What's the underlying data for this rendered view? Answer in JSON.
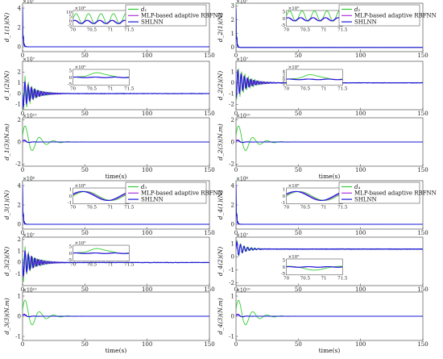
{
  "colors": {
    "d": "#33cc33",
    "mlp": "#aa33dd",
    "shlnn": "#1a1ad9",
    "axis": "#333333"
  },
  "legend_labels": [
    "MLP-based adaptive RBFNN",
    "SHLNN"
  ],
  "xlabel": "time(s)",
  "chart_data": [
    {
      "id": "p1",
      "type": "line",
      "col": 0,
      "row": 0,
      "ylabel": "d_1(1)(N)",
      "exponent": "×10⁷",
      "xlim": [
        0,
        150
      ],
      "ylim": [
        -0.5,
        4.5
      ],
      "yticks": [
        "0",
        "2",
        "4"
      ],
      "xticks": [
        "0",
        "50",
        "100",
        "150"
      ],
      "legend": {
        "symbol": "d₁"
      },
      "inset": {
        "xlim": [
          70,
          71.5
        ],
        "ylim": [
          -6,
          12
        ],
        "yticks": [
          "-5",
          "0",
          "5",
          "10"
        ],
        "xticks": [
          "70",
          "70.5",
          "71",
          "71.5"
        ],
        "exponent": "×10⁵",
        "series": {
          "d": "osc",
          "mlp": "osc-small",
          "shlnn": "osc-small"
        }
      },
      "series": [
        {
          "name": "d_1",
          "transient": "spike-up"
        }
      ]
    },
    {
      "id": "p2",
      "type": "line",
      "col": 1,
      "row": 0,
      "ylabel": "d_2(1)(N)",
      "exponent": "×10⁷",
      "xlim": [
        0,
        150
      ],
      "ylim": [
        -0.3,
        3.2
      ],
      "yticks": [
        "0",
        "1",
        "2",
        "3"
      ],
      "xticks": [
        "0",
        "50",
        "100",
        "150"
      ],
      "legend": {
        "symbol": "d₂"
      },
      "inset": {
        "xlim": [
          70,
          71.5
        ],
        "ylim": [
          -6,
          6
        ],
        "yticks": [
          "-5",
          "0",
          "5"
        ],
        "xticks": [
          "70",
          "70.5",
          "71",
          "71.5"
        ],
        "exponent": "×10⁵",
        "series": {
          "d": "osc",
          "mlp": "osc-small",
          "shlnn": "osc-small"
        }
      },
      "series": [
        {
          "name": "d_2",
          "transient": "spike-up"
        }
      ]
    },
    {
      "id": "p3",
      "type": "line",
      "col": 0,
      "row": 1,
      "ylabel": "d_1(2)(N)",
      "exponent": "×10⁷",
      "xlim": [
        0,
        150
      ],
      "ylim": [
        -1.5,
        3
      ],
      "yticks": [
        "-1",
        "0",
        "1",
        "2"
      ],
      "xticks": [
        "0",
        "50",
        "100",
        "150"
      ],
      "inset": {
        "xlim": [
          70,
          71.5
        ],
        "ylim": [
          -6,
          6
        ],
        "yticks": [
          "-5",
          "0",
          "5"
        ],
        "xticks": [
          "70",
          "70.5",
          "71",
          "71.5"
        ],
        "exponent": "×10⁵",
        "series": {
          "d": "bump",
          "mlp": "flat",
          "shlnn": "flat"
        }
      },
      "series": [
        {
          "name": "d_1",
          "transient": "burst"
        }
      ]
    },
    {
      "id": "p4",
      "type": "line",
      "col": 1,
      "row": 1,
      "ylabel": "d_2(2)(N)",
      "exponent": "×10⁷",
      "xlim": [
        0,
        150
      ],
      "ylim": [
        -2.5,
        2
      ],
      "yticks": [
        "-2",
        "-1",
        "0",
        "1"
      ],
      "xticks": [
        "0",
        "50",
        "100",
        "150"
      ],
      "inset": {
        "xlim": [
          70,
          71.5
        ],
        "ylim": [
          -3,
          5
        ],
        "yticks": [
          "-2",
          "0",
          "2",
          "4"
        ],
        "xticks": [
          "70",
          "70.5",
          "71",
          "71.5"
        ],
        "exponent": "×10⁵",
        "series": {
          "d": "bump",
          "mlp": "flat",
          "shlnn": "flat"
        }
      },
      "series": [
        {
          "name": "d_2",
          "transient": "burst"
        }
      ]
    },
    {
      "id": "p5",
      "type": "line",
      "col": 0,
      "row": 2,
      "ylabel": "d_1(3)(N.m)",
      "exponent": "×10¹⁰",
      "xlim": [
        0,
        150
      ],
      "ylim": [
        -2.2,
        2.2
      ],
      "yticks": [
        "-2",
        "0",
        "2"
      ],
      "xticks": [
        "0",
        "50",
        "100",
        "150"
      ],
      "showXlabel": true,
      "series": [
        {
          "name": "d_1",
          "transient": "decay"
        }
      ]
    },
    {
      "id": "p6",
      "type": "line",
      "col": 1,
      "row": 2,
      "ylabel": "d_2(3)(N.m)",
      "exponent": "×10¹⁰",
      "xlim": [
        0,
        150
      ],
      "ylim": [
        -2.2,
        2.2
      ],
      "yticks": [
        "-2",
        "0",
        "2"
      ],
      "xticks": [
        "0",
        "50",
        "100",
        "150"
      ],
      "showXlabel": true,
      "series": [
        {
          "name": "d_2",
          "transient": "decay"
        }
      ]
    },
    {
      "id": "p7",
      "type": "line",
      "col": 0,
      "row": 3,
      "ylabel": "d_3(1)(N)",
      "exponent": "×10⁶",
      "xlim": [
        0,
        150
      ],
      "ylim": [
        -0.5,
        4.5
      ],
      "yticks": [
        "0",
        "2",
        "4"
      ],
      "xticks": [
        "0",
        "50",
        "100",
        "150"
      ],
      "legend": {
        "symbol": "d₃"
      },
      "inset": {
        "xlim": [
          70,
          71.5
        ],
        "ylim": [
          -1.2,
          1.2
        ],
        "yticks": [
          "-1",
          "0",
          "1"
        ],
        "xticks": [
          "70",
          "70.5",
          "71",
          "71.5"
        ],
        "exponent": "×10⁶",
        "series": {
          "d": "wave",
          "mlp": "wave",
          "shlnn": "wave"
        }
      },
      "series": [
        {
          "name": "d_3",
          "transient": "spike-up"
        }
      ]
    },
    {
      "id": "p8",
      "type": "line",
      "col": 1,
      "row": 3,
      "ylabel": "d_4(1)(N)",
      "exponent": "×10⁶",
      "xlim": [
        0,
        150
      ],
      "ylim": [
        -0.5,
        4.5
      ],
      "yticks": [
        "0",
        "2",
        "4"
      ],
      "xticks": [
        "0",
        "50",
        "100",
        "150"
      ],
      "legend": {
        "symbol": "d₄"
      },
      "inset": {
        "xlim": [
          70,
          71.5
        ],
        "ylim": [
          -1.2,
          1.2
        ],
        "yticks": [
          "-1",
          "0",
          "1"
        ],
        "xticks": [
          "70",
          "70.5",
          "71",
          "71.5"
        ],
        "exponent": "×10⁶",
        "series": {
          "d": "wave",
          "mlp": "wave",
          "shlnn": "wave"
        }
      },
      "series": [
        {
          "name": "d_4",
          "transient": "spike-up"
        }
      ]
    },
    {
      "id": "p9",
      "type": "line",
      "col": 0,
      "row": 4,
      "ylabel": "d_3(2)(N)",
      "exponent": "×10⁷",
      "xlim": [
        0,
        150
      ],
      "ylim": [
        -2,
        2.2
      ],
      "yticks": [
        "-1",
        "0",
        "1",
        "2"
      ],
      "xticks": [
        "0",
        "50",
        "100",
        "150"
      ],
      "inset": {
        "xlim": [
          70,
          71.5
        ],
        "ylim": [
          -6,
          6
        ],
        "yticks": [
          "-5",
          "0",
          "5"
        ],
        "xticks": [
          "70",
          "70.5",
          "71",
          "71.5"
        ],
        "exponent": "×10⁵",
        "series": {
          "d": "bump",
          "mlp": "flat",
          "shlnn": "flat"
        }
      },
      "series": [
        {
          "name": "d_3",
          "transient": "burst"
        }
      ]
    },
    {
      "id": "p10",
      "type": "line",
      "col": 1,
      "row": 4,
      "ylabel": "d_4(2)(N)",
      "exponent": "×10⁷",
      "xlim": [
        0,
        150
      ],
      "ylim": [
        -2.2,
        1.5
      ],
      "yticks": [
        "-2",
        "-1",
        "0",
        "1"
      ],
      "xticks": [
        "0",
        "50",
        "100",
        "150"
      ],
      "inset": {
        "xlim": [
          70,
          71.5
        ],
        "ylim": [
          -6,
          6
        ],
        "yticks": [
          "-5",
          "0",
          "5"
        ],
        "xticks": [
          "70",
          "70.5",
          "71",
          "71.5"
        ],
        "exponent": "×10⁵",
        "series": {
          "d": "bump-down",
          "mlp": "flat",
          "shlnn": "flat"
        }
      },
      "series": [
        {
          "name": "d_4",
          "transient": "offset"
        }
      ]
    },
    {
      "id": "p11",
      "type": "line",
      "col": 0,
      "row": 5,
      "ylabel": "d_3(3)(N.m)",
      "exponent": "×10¹⁰",
      "xlim": [
        0,
        150
      ],
      "ylim": [
        -1.2,
        1.2
      ],
      "yticks": [
        "-1",
        "0",
        "1"
      ],
      "xticks": [
        "0",
        "50",
        "100",
        "150"
      ],
      "showXlabel": true,
      "series": [
        {
          "name": "d_3",
          "transient": "decay"
        }
      ]
    },
    {
      "id": "p12",
      "type": "line",
      "col": 1,
      "row": 5,
      "ylabel": "d_4(3)(N.m)",
      "exponent": "×10¹⁰",
      "xlim": [
        0,
        150
      ],
      "ylim": [
        -1.2,
        1.2
      ],
      "yticks": [
        "-1",
        "0",
        "1"
      ],
      "xticks": [
        "0",
        "50",
        "100",
        "150"
      ],
      "showXlabel": true,
      "series": [
        {
          "name": "d_4",
          "transient": "decay"
        }
      ]
    }
  ]
}
